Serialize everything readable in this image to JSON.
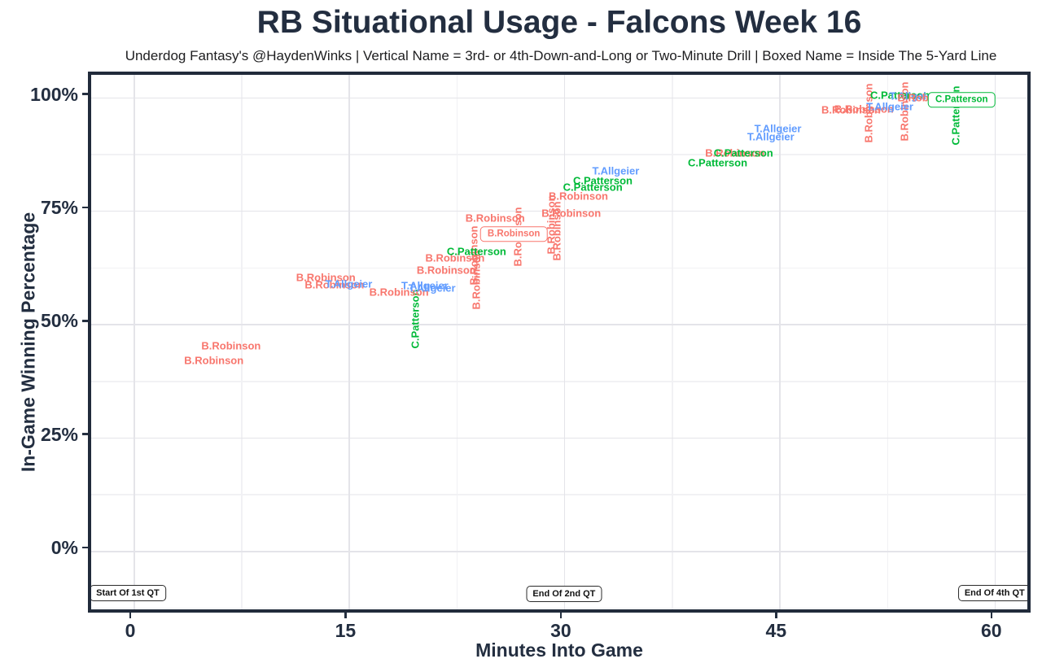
{
  "title": "RB Situational Usage - Falcons Week 16",
  "subtitle": "Underdog Fantasy's @HaydenWinks | Vertical Name = 3rd- or 4th-Down-and-Long or Two-Minute Drill | Boxed Name = Inside The 5-Yard Line",
  "colors": {
    "b_robinson": "#F8766D",
    "t_allgeier": "#619CFF",
    "c_patterson": "#00BA38",
    "axis_text": "#232E40",
    "panel_border": "#212B3B",
    "grid_major": "#E4E4E9",
    "grid_minor": "#F1F1F4"
  },
  "chart_data": {
    "type": "scatter",
    "title": "RB Situational Usage - Falcons Week 16",
    "subtitle": "Underdog Fantasy's @HaydenWinks | Vertical Name = 3rd- or 4th-Down-and-Long or Two-Minute Drill | Boxed Name = Inside The 5-Yard Line",
    "xlabel": "Minutes Into Game",
    "ylabel": "In-Game Winning Percentage",
    "x_ticks": [
      0,
      15,
      30,
      45,
      60
    ],
    "x_tick_labels": [
      "0",
      "15",
      "30",
      "45",
      "60"
    ],
    "y_ticks": [
      0,
      25,
      50,
      75,
      100
    ],
    "y_tick_labels": [
      "0%",
      "25%",
      "50%",
      "75%",
      "100%"
    ],
    "xlim": [
      -3,
      62.8
    ],
    "ylim": [
      -14.3,
      104.9
    ],
    "grid": "major and minor, light gray on white",
    "legend_position": "none (players distinguished by text color)",
    "label_meaning": {
      "vertical": "3rd- or 4th-Down-and-Long or Two-Minute Drill",
      "boxed": "Inside The 5-Yard Line"
    },
    "points": [
      {
        "player": "B.Robinson",
        "minutes": 5.6,
        "win_pct": 42.0,
        "style": "horizontal"
      },
      {
        "player": "B.Robinson",
        "minutes": 6.8,
        "win_pct": 45.2,
        "style": "horizontal"
      },
      {
        "player": "B.Robinson",
        "minutes": 13.4,
        "win_pct": 60.3,
        "style": "horizontal"
      },
      {
        "player": "B.Robinson",
        "minutes": 14.0,
        "win_pct": 58.7,
        "style": "horizontal"
      },
      {
        "player": "T.Allgeier",
        "minutes": 15.0,
        "win_pct": 58.8,
        "style": "horizontal"
      },
      {
        "player": "B.Robinson",
        "minutes": 18.5,
        "win_pct": 57.0,
        "style": "horizontal"
      },
      {
        "player": "C.Patterson",
        "minutes": 19.6,
        "win_pct": 51.1,
        "style": "vertical"
      },
      {
        "player": "T.Allgeier",
        "minutes": 20.3,
        "win_pct": 58.5,
        "style": "horizontal"
      },
      {
        "player": "T.Allgeier",
        "minutes": 20.8,
        "win_pct": 57.9,
        "style": "horizontal"
      },
      {
        "player": "B.Robinson",
        "minutes": 21.8,
        "win_pct": 61.9,
        "style": "horizontal"
      },
      {
        "player": "B.Robinson",
        "minutes": 22.4,
        "win_pct": 64.6,
        "style": "horizontal"
      },
      {
        "player": "B.Robinson",
        "minutes": 23.7,
        "win_pct": 65.1,
        "style": "vertical"
      },
      {
        "player": "B.Robinson",
        "minutes": 23.9,
        "win_pct": 59.7,
        "style": "vertical"
      },
      {
        "player": "C.Patterson",
        "minutes": 23.9,
        "win_pct": 66.0,
        "style": "horizontal"
      },
      {
        "player": "B.Robinson",
        "minutes": 25.2,
        "win_pct": 73.4,
        "style": "horizontal"
      },
      {
        "player": "B.Robinson",
        "minutes": 26.5,
        "win_pct": 69.8,
        "style": "boxed"
      },
      {
        "player": "B.Robinson",
        "minutes": 26.8,
        "win_pct": 69.2,
        "style": "vertical"
      },
      {
        "player": "B.Robinson",
        "minutes": 29.1,
        "win_pct": 71.9,
        "style": "vertical"
      },
      {
        "player": "B.Robinson",
        "minutes": 29.5,
        "win_pct": 70.5,
        "style": "vertical"
      },
      {
        "player": "B.Robinson",
        "minutes": 30.5,
        "win_pct": 74.4,
        "style": "horizontal"
      },
      {
        "player": "B.Robinson",
        "minutes": 31.0,
        "win_pct": 78.2,
        "style": "horizontal"
      },
      {
        "player": "C.Patterson",
        "minutes": 32.0,
        "win_pct": 80.2,
        "style": "horizontal"
      },
      {
        "player": "C.Patterson",
        "minutes": 32.7,
        "win_pct": 81.6,
        "style": "horizontal"
      },
      {
        "player": "T.Allgeier",
        "minutes": 33.6,
        "win_pct": 83.8,
        "style": "horizontal"
      },
      {
        "player": "C.Patterson",
        "minutes": 40.7,
        "win_pct": 85.6,
        "style": "horizontal"
      },
      {
        "player": "B.Robinson",
        "minutes": 41.9,
        "win_pct": 87.7,
        "style": "horizontal"
      },
      {
        "player": "C.Patterson",
        "minutes": 42.5,
        "win_pct": 87.7,
        "style": "horizontal"
      },
      {
        "player": "T.Allgeier",
        "minutes": 44.4,
        "win_pct": 91.3,
        "style": "horizontal"
      },
      {
        "player": "T.Allgeier",
        "minutes": 44.9,
        "win_pct": 93.1,
        "style": "horizontal"
      },
      {
        "player": "B.Robinson",
        "minutes": 50.0,
        "win_pct": 97.2,
        "style": "horizontal"
      },
      {
        "player": "B.Robinson",
        "minutes": 50.9,
        "win_pct": 97.4,
        "style": "horizontal"
      },
      {
        "player": "B.Robinson",
        "minutes": 51.2,
        "win_pct": 96.5,
        "style": "vertical"
      },
      {
        "player": "T.Allgeier",
        "minutes": 52.7,
        "win_pct": 97.9,
        "style": "horizontal"
      },
      {
        "player": "C.Patterson",
        "minutes": 53.4,
        "win_pct": 100.4,
        "style": "horizontal"
      },
      {
        "player": "B.Robinson",
        "minutes": 53.7,
        "win_pct": 96.9,
        "style": "vertical"
      },
      {
        "player": "T.Allgeier",
        "minutes": 54.3,
        "win_pct": 100.3,
        "style": "horizontal"
      },
      {
        "player": "B.Robinson",
        "minutes": 55.3,
        "win_pct": 99.9,
        "style": "horizontal"
      },
      {
        "player": "C.Patterson",
        "minutes": 57.3,
        "win_pct": 96.0,
        "style": "vertical"
      },
      {
        "player": "C.Patterson",
        "minutes": 57.7,
        "win_pct": 99.4,
        "style": "boxed"
      }
    ],
    "annotations": [
      {
        "label": "Start Of 1st QT",
        "minutes": -0.4,
        "win_pct": -9.3
      },
      {
        "label": "End Of 2nd QT",
        "minutes": 30.0,
        "win_pct": -9.5
      },
      {
        "label": "End Of 4th QT",
        "minutes": 60.0,
        "win_pct": -9.3
      }
    ]
  }
}
